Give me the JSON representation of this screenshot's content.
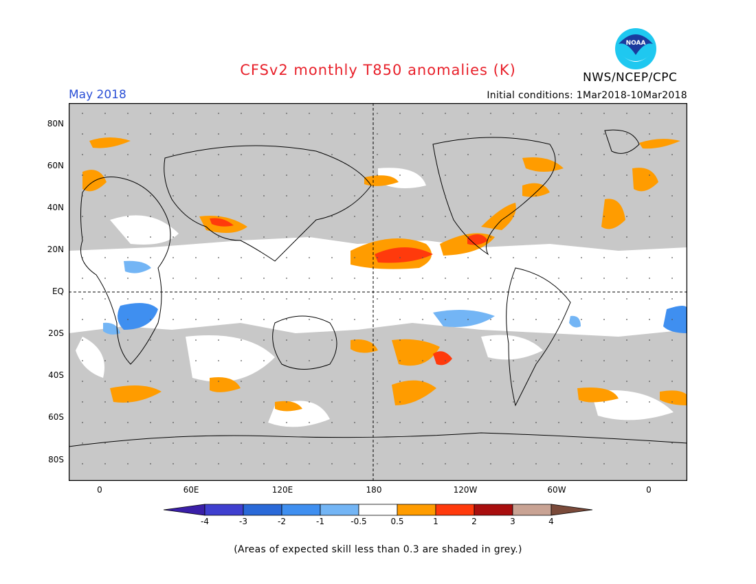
{
  "header": {
    "title": "CFSv2 monthly T850 anomalies (K)",
    "month": "May 2018",
    "initial_conditions": "Initial conditions: 1Mar2018-10Mar2018",
    "agency": "NWS/NCEP/CPC",
    "logo_text": "NOAA"
  },
  "map": {
    "lat_labels": [
      "80N",
      "60N",
      "40N",
      "20N",
      "EQ",
      "20S",
      "40S",
      "60S",
      "80S"
    ],
    "lon_labels": [
      "0",
      "60E",
      "120E",
      "180",
      "120W",
      "60W",
      "0"
    ]
  },
  "colorbar": {
    "ticks": [
      "-4",
      "-3",
      "-2",
      "-1",
      "-0.5",
      "0.5",
      "1",
      "2",
      "3",
      "4"
    ],
    "colors": [
      "#3a1fa8",
      "#3f3fcf",
      "#2a69d8",
      "#3f8ff0",
      "#73b5f5",
      "#ffffff",
      "#ff9c00",
      "#ff3a0c",
      "#a80e0e",
      "#c9a394",
      "#7a4a3a"
    ]
  },
  "colors": {
    "grey": "#c8c8c8",
    "orange": "#ff9c00",
    "red": "#ff3a0c",
    "light_blue": "#73b5f5",
    "blue": "#3f8ff0"
  },
  "footer": {
    "note": "(Areas of expected skill less than 0.3 are shaded in grey.)"
  }
}
